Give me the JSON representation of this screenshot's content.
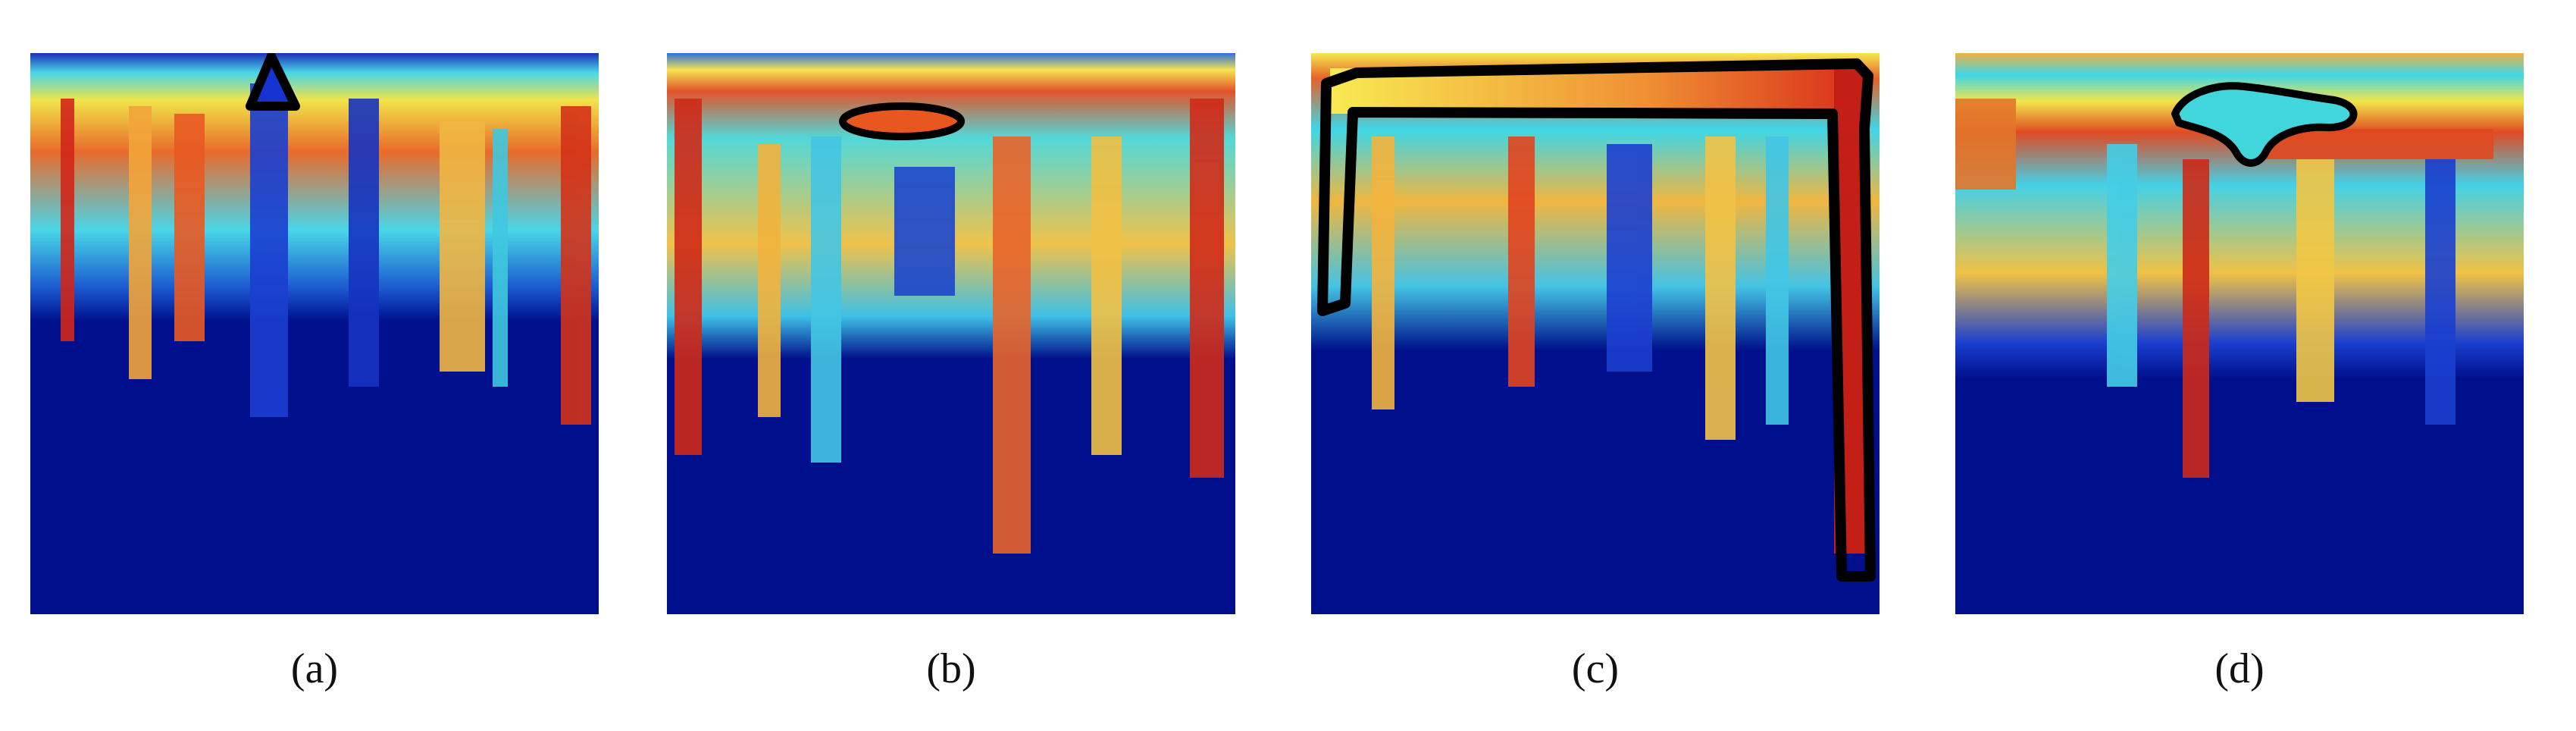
{
  "panels": [
    {
      "label": "(a)",
      "annotation_shape": "triangle",
      "annotation_color": "#000000"
    },
    {
      "label": "(b)",
      "annotation_shape": "ellipse",
      "annotation_color": "#000000"
    },
    {
      "label": "(c)",
      "annotation_shape": "bracket-outline",
      "annotation_color": "#000000"
    },
    {
      "label": "(d)",
      "annotation_shape": "blob-outline",
      "annotation_color": "#000000"
    }
  ],
  "colors": {
    "background_blue": "#00108c",
    "mid_cyan": "#3fd6e6",
    "yellow": "#f2e64a",
    "red": "#d0261a"
  }
}
